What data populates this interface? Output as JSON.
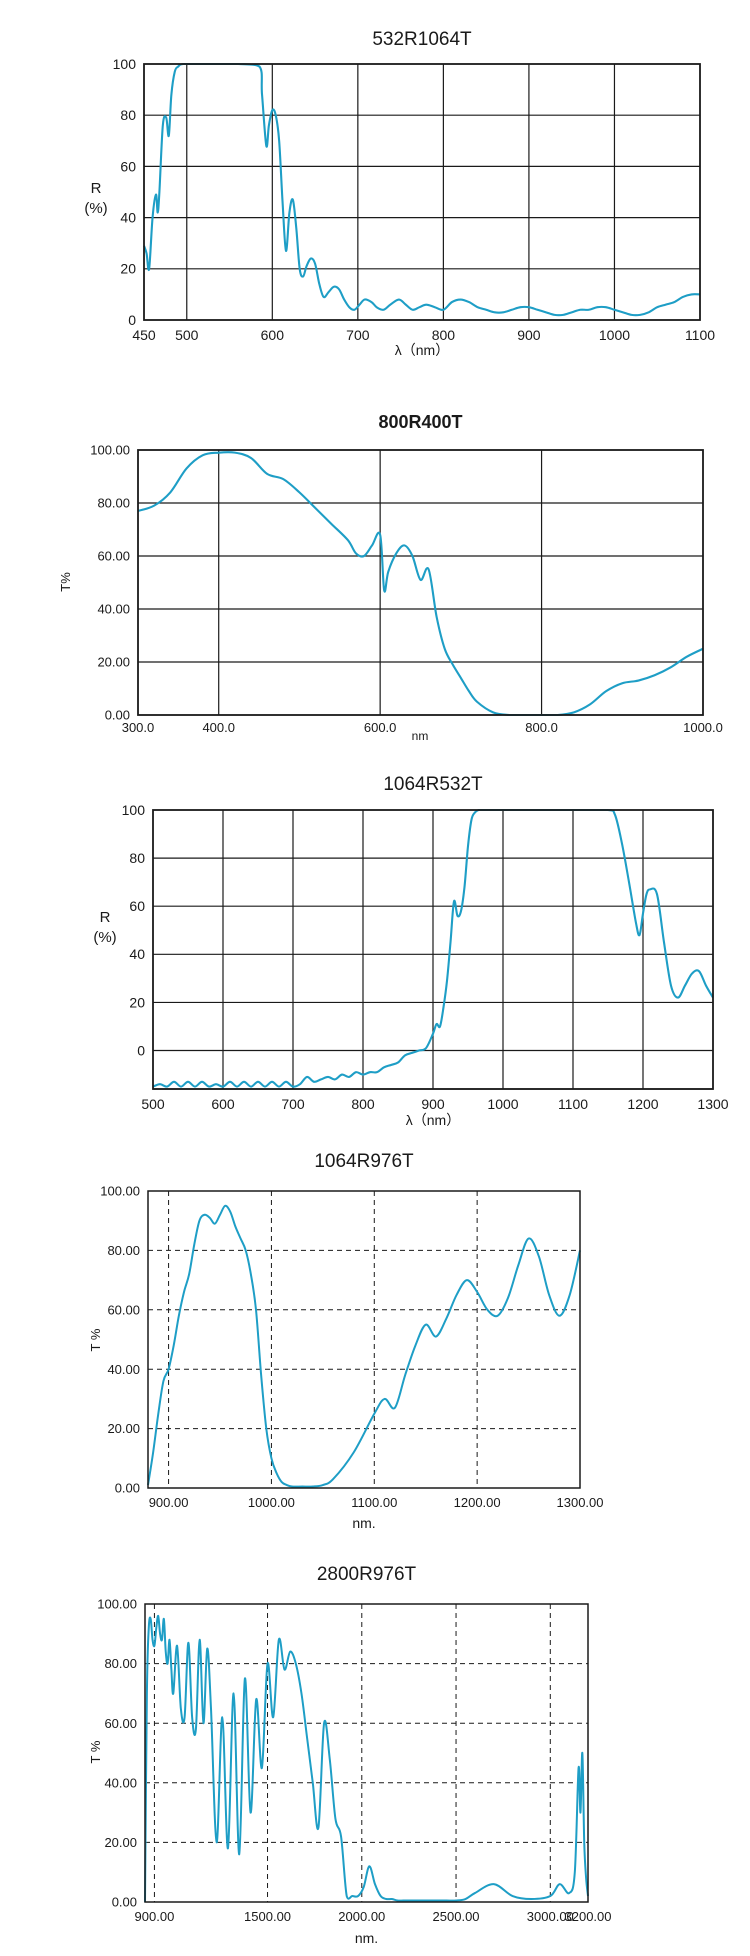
{
  "colors": {
    "curve": "#1e9ec6",
    "frame": "#1a1a1a",
    "grid": "#1a1a1a",
    "text": "#1a1a1a"
  },
  "chart_data": [
    {
      "type": "line",
      "title": "532R1064T",
      "xlabel": "λ（nm）",
      "ylabel_line1": "R",
      "ylabel_line2": "(%)",
      "xlim": [
        450,
        1100
      ],
      "ylim": [
        0,
        100
      ],
      "x_ticks": [
        450,
        500,
        600,
        700,
        800,
        900,
        1000,
        1100
      ],
      "x_tick_labels": [
        "450",
        "500",
        "600",
        "700",
        "800",
        "900",
        "1000",
        "1100"
      ],
      "y_ticks": [
        0,
        20,
        40,
        60,
        80,
        100
      ],
      "y_tick_labels": [
        "0",
        "20",
        "40",
        "60",
        "80",
        "100"
      ],
      "grid": "solid",
      "series": [
        {
          "name": "R",
          "x": [
            450,
            453,
            456,
            460,
            464,
            466,
            468,
            472,
            476,
            479,
            482,
            486,
            490,
            496,
            520,
            560,
            585,
            588,
            593,
            596,
            600,
            604,
            608,
            612,
            616,
            620,
            624,
            628,
            632,
            636,
            640,
            645,
            650,
            655,
            660,
            666,
            672,
            678,
            684,
            690,
            696,
            702,
            708,
            716,
            722,
            730,
            738,
            748,
            756,
            764,
            772,
            780,
            790,
            800,
            810,
            820,
            830,
            840,
            850,
            860,
            870,
            880,
            890,
            900,
            910,
            920,
            930,
            940,
            950,
            960,
            970,
            980,
            990,
            1000,
            1010,
            1020,
            1030,
            1040,
            1050,
            1060,
            1070,
            1080,
            1090,
            1100
          ],
          "y": [
            29,
            26,
            20,
            40,
            49,
            42,
            50,
            76,
            79,
            72,
            88,
            97,
            99,
            100,
            100,
            100,
            99,
            88,
            68,
            76,
            82,
            80,
            70,
            46,
            27,
            42,
            47,
            36,
            20,
            17,
            21,
            24,
            22,
            14,
            9,
            11,
            13,
            12,
            8,
            5,
            4,
            6,
            8,
            7,
            5,
            4,
            6,
            8,
            6,
            4,
            5,
            6,
            5,
            4,
            7,
            8,
            7,
            5,
            4,
            3,
            3,
            4,
            5,
            5,
            4,
            3,
            2,
            2,
            3,
            4,
            4,
            5,
            5,
            4,
            3,
            2,
            2,
            3,
            5,
            6,
            7,
            9,
            10,
            10
          ]
        }
      ]
    },
    {
      "type": "line",
      "title": "800R400T",
      "xlabel": "nm",
      "ylabel": "T%",
      "xlim": [
        300,
        1000
      ],
      "ylim": [
        0,
        100
      ],
      "x_ticks": [
        300,
        400,
        600,
        800,
        1000
      ],
      "x_tick_labels": [
        "300.0",
        "400.0",
        "600.0",
        "800.0",
        "1000.0"
      ],
      "y_ticks": [
        0,
        20,
        40,
        60,
        80,
        100
      ],
      "y_tick_labels": [
        "0.00",
        "20.00",
        "40.00",
        "60.00",
        "80.00",
        "100.00"
      ],
      "grid": "solid",
      "series": [
        {
          "name": "T",
          "x": [
            300,
            320,
            340,
            360,
            380,
            400,
            420,
            440,
            460,
            480,
            500,
            520,
            540,
            560,
            570,
            580,
            590,
            600,
            605,
            610,
            620,
            630,
            640,
            650,
            660,
            670,
            680,
            690,
            700,
            710,
            720,
            740,
            760,
            780,
            800,
            820,
            840,
            860,
            880,
            900,
            920,
            940,
            960,
            980,
            1000
          ],
          "y": [
            77,
            79,
            84,
            93,
            98,
            99,
            99,
            97,
            91,
            89,
            84,
            78,
            72,
            66,
            61,
            60,
            64,
            68,
            47,
            54,
            61,
            64,
            60,
            51,
            55,
            37,
            25,
            19,
            14,
            9,
            5,
            1,
            0,
            0,
            0,
            0,
            1,
            4,
            9,
            12,
            13,
            15,
            18,
            22,
            25
          ]
        }
      ]
    },
    {
      "type": "line",
      "title": "1064R532T",
      "xlabel": "λ（nm）",
      "ylabel_line1": "R",
      "ylabel_line2": "(%)",
      "xlim": [
        500,
        1300
      ],
      "ylim": [
        -16,
        100
      ],
      "x_ticks": [
        500,
        600,
        700,
        800,
        900,
        1000,
        1100,
        1200,
        1300
      ],
      "x_tick_labels": [
        "500",
        "600",
        "700",
        "800",
        "900",
        "1000",
        "1100",
        "1200",
        "1300"
      ],
      "y_ticks": [
        0,
        20,
        40,
        60,
        80,
        100
      ],
      "y_tick_labels": [
        "0",
        "20",
        "40",
        "60",
        "80",
        "100"
      ],
      "grid": "solid",
      "series": [
        {
          "name": "R",
          "x": [
            500,
            510,
            520,
            530,
            540,
            550,
            560,
            570,
            580,
            590,
            600,
            610,
            620,
            630,
            640,
            650,
            660,
            670,
            680,
            690,
            700,
            710,
            720,
            730,
            740,
            750,
            760,
            770,
            780,
            790,
            800,
            810,
            820,
            830,
            840,
            850,
            860,
            870,
            880,
            890,
            900,
            905,
            910,
            915,
            920,
            925,
            930,
            935,
            940,
            945,
            950,
            955,
            960,
            965,
            970,
            980,
            1000,
            1050,
            1100,
            1150,
            1160,
            1170,
            1180,
            1190,
            1195,
            1200,
            1205,
            1210,
            1220,
            1230,
            1240,
            1250,
            1260,
            1270,
            1280,
            1290,
            1300
          ],
          "y": [
            -15,
            -14,
            -15,
            -13,
            -15,
            -13,
            -15,
            -13,
            -15,
            -14,
            -15,
            -13,
            -15,
            -13,
            -15,
            -13,
            -15,
            -13,
            -15,
            -13,
            -15,
            -14,
            -11,
            -13,
            -12,
            -11,
            -12,
            -10,
            -11,
            -9,
            -10,
            -9,
            -9,
            -7,
            -6,
            -5,
            -2,
            -1,
            0,
            1,
            7,
            11,
            10,
            18,
            29,
            45,
            62,
            56,
            58,
            68,
            85,
            96,
            99,
            100,
            100,
            100,
            100,
            100,
            100,
            100,
            98,
            86,
            70,
            53,
            48,
            57,
            65,
            67,
            65,
            45,
            27,
            22,
            27,
            32,
            33,
            27,
            22
          ]
        }
      ]
    },
    {
      "type": "line",
      "title": "1064R976T",
      "xlabel": "nm.",
      "ylabel": "T %",
      "xlim": [
        880,
        1300
      ],
      "ylim": [
        0,
        100
      ],
      "x_ticks": [
        900,
        1000,
        1100,
        1200,
        1300
      ],
      "x_tick_labels": [
        "900.00",
        "1000.00",
        "1100.00",
        "1200.00",
        "1300.00"
      ],
      "y_ticks": [
        0,
        20,
        40,
        60,
        80,
        100
      ],
      "y_tick_labels": [
        "0.00",
        "20.00",
        "40.00",
        "60.00",
        "80.00",
        "100.00"
      ],
      "grid": "dashed",
      "series": [
        {
          "name": "T",
          "x": [
            880,
            885,
            890,
            895,
            900,
            905,
            910,
            915,
            920,
            925,
            930,
            935,
            940,
            945,
            950,
            955,
            960,
            965,
            970,
            975,
            980,
            985,
            990,
            995,
            1000,
            1005,
            1010,
            1015,
            1020,
            1030,
            1040,
            1050,
            1060,
            1080,
            1100,
            1110,
            1120,
            1130,
            1140,
            1150,
            1160,
            1170,
            1180,
            1190,
            1200,
            1210,
            1220,
            1230,
            1240,
            1250,
            1260,
            1270,
            1280,
            1290,
            1300
          ],
          "y": [
            1,
            12,
            25,
            36,
            40,
            48,
            58,
            66,
            72,
            82,
            90,
            92,
            91,
            89,
            92,
            95,
            93,
            88,
            84,
            80,
            72,
            60,
            38,
            20,
            10,
            5,
            2,
            1,
            0.5,
            0.5,
            0.5,
            1,
            3,
            12,
            25,
            30,
            27,
            38,
            48,
            55,
            51,
            57,
            65,
            70,
            66,
            60,
            58,
            64,
            75,
            84,
            78,
            65,
            58,
            65,
            80
          ]
        }
      ]
    },
    {
      "type": "line",
      "title": "2800R976T",
      "xlabel": "nm.",
      "ylabel": "T %",
      "xlim": [
        850,
        3200
      ],
      "ylim": [
        0,
        100
      ],
      "x_ticks": [
        900,
        1500,
        2000,
        2500,
        3000,
        3200
      ],
      "x_tick_labels": [
        "900.00",
        "1500.00",
        "2000.00",
        "2500.00",
        "3000.00",
        "3200.00"
      ],
      "y_ticks": [
        0,
        20,
        40,
        60,
        80,
        100
      ],
      "y_tick_labels": [
        "0.00",
        "20.00",
        "40.00",
        "60.00",
        "80.00",
        "100.00"
      ],
      "grid": "dashed",
      "series": [
        {
          "name": "T",
          "x": [
            850,
            860,
            870,
            880,
            890,
            900,
            910,
            920,
            930,
            940,
            950,
            960,
            970,
            980,
            990,
            1000,
            1020,
            1040,
            1060,
            1080,
            1100,
            1120,
            1140,
            1160,
            1180,
            1200,
            1230,
            1260,
            1290,
            1320,
            1350,
            1380,
            1410,
            1440,
            1470,
            1500,
            1530,
            1560,
            1590,
            1620,
            1650,
            1680,
            1710,
            1740,
            1770,
            1800,
            1830,
            1860,
            1890,
            1920,
            1950,
            1980,
            2010,
            2040,
            2070,
            2100,
            2130,
            2160,
            2190,
            2220,
            2250,
            2300,
            2350,
            2400,
            2450,
            2500,
            2550,
            2600,
            2700,
            2800,
            2900,
            3000,
            3050,
            3100,
            3130,
            3150,
            3160,
            3170,
            3180,
            3190,
            3200
          ],
          "y": [
            0,
            70,
            92,
            95,
            88,
            86,
            92,
            96,
            90,
            88,
            95,
            84,
            80,
            88,
            78,
            70,
            86,
            65,
            62,
            87,
            62,
            58,
            88,
            60,
            85,
            65,
            20,
            62,
            18,
            70,
            16,
            75,
            30,
            68,
            45,
            80,
            62,
            88,
            78,
            84,
            80,
            70,
            55,
            40,
            25,
            60,
            48,
            28,
            22,
            2,
            2,
            2,
            5,
            12,
            6,
            2,
            1,
            1,
            0.5,
            0.5,
            0.5,
            0.5,
            0.5,
            0.5,
            0.5,
            0.5,
            1,
            3,
            6,
            2,
            1,
            2,
            6,
            3,
            10,
            45,
            30,
            50,
            20,
            8,
            2
          ]
        }
      ]
    }
  ]
}
